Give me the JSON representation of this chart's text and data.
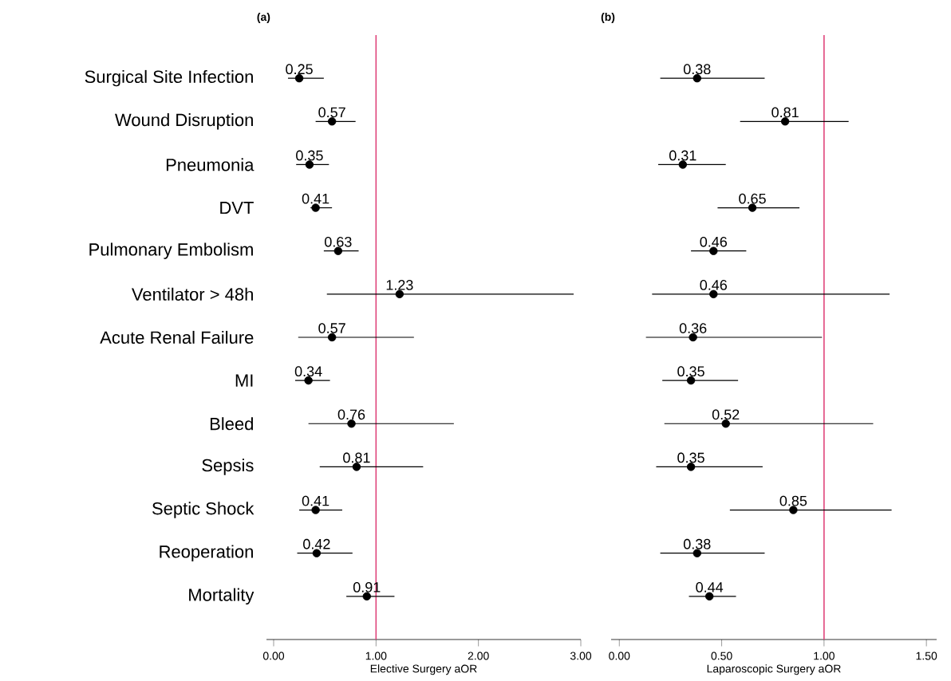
{
  "chart_data": [
    {
      "type": "scatter",
      "orientation": "horizontal",
      "title": "(a)",
      "xlabel": "Elective Surgery aOR",
      "color": "#000000",
      "marker": "circle",
      "data_labels": true,
      "categories": [
        "Surgical Site Infection",
        "Wound Disruption",
        "Pneumonia",
        "DVT",
        "Pulmonary Embolism",
        "Ventilator > 48h",
        "Acute Renal Failure",
        "MI",
        "Bleed",
        "Sepsis",
        "Septic Shock",
        "Reoperation",
        "Mortality"
      ],
      "values": [
        0.25,
        0.57,
        0.35,
        0.41,
        0.63,
        1.23,
        0.57,
        0.34,
        0.76,
        0.81,
        0.41,
        0.42,
        0.91
      ],
      "errors": [
        [
          0.14,
          0.49
        ],
        [
          0.41,
          0.8
        ],
        [
          0.22,
          0.54
        ],
        [
          0.36,
          0.57
        ],
        [
          0.49,
          0.83
        ],
        [
          0.52,
          2.93
        ],
        [
          0.24,
          1.37
        ],
        [
          0.21,
          0.55
        ],
        [
          0.34,
          1.76
        ],
        [
          0.45,
          1.46
        ],
        [
          0.25,
          0.67
        ],
        [
          0.23,
          0.77
        ],
        [
          0.71,
          1.18
        ]
      ],
      "xlim": [
        -0.07,
        3.0
      ],
      "xticks": [
        {
          "value": 0,
          "label": "0.00"
        },
        {
          "value": 1,
          "label": "1.00"
        },
        {
          "value": 2,
          "label": "2.00"
        },
        {
          "value": 3,
          "label": "3.00"
        }
      ],
      "ref_lines": [
        {
          "axis": "x",
          "value": 1,
          "color": "#e0457b"
        }
      ]
    },
    {
      "type": "scatter",
      "orientation": "horizontal",
      "title": "(b)",
      "xlabel": "Laparoscopic Surgery aOR",
      "color": "#000000",
      "marker": "circle",
      "data_labels": true,
      "tick_labels": "x",
      "categories": [
        null,
        null,
        null,
        null,
        null,
        null,
        null,
        null,
        null,
        null,
        null,
        null,
        null
      ],
      "values": [
        0.38,
        0.81,
        0.31,
        0.65,
        0.46,
        0.46,
        0.36,
        0.35,
        0.52,
        0.35,
        0.85,
        0.38,
        0.44
      ],
      "errors": [
        [
          0.2,
          0.71
        ],
        [
          0.59,
          1.12
        ],
        [
          0.19,
          0.52
        ],
        [
          0.48,
          0.88
        ],
        [
          0.35,
          0.62
        ],
        [
          0.16,
          1.32
        ],
        [
          0.13,
          0.99
        ],
        [
          0.21,
          0.58
        ],
        [
          0.22,
          1.24
        ],
        [
          0.18,
          0.7
        ],
        [
          0.54,
          1.33
        ],
        [
          0.2,
          0.71
        ],
        [
          0.34,
          0.57
        ]
      ],
      "xlim": [
        -0.04,
        1.55
      ],
      "xticks": [
        {
          "value": 0,
          "label": "0.00"
        },
        {
          "value": 0.5,
          "label": "0.50"
        },
        {
          "value": 1,
          "label": "1.00"
        },
        {
          "value": 1.5,
          "label": "1.50"
        }
      ],
      "ref_lines": [
        {
          "axis": "x",
          "value": 1,
          "color": "#e0457b"
        }
      ]
    }
  ]
}
